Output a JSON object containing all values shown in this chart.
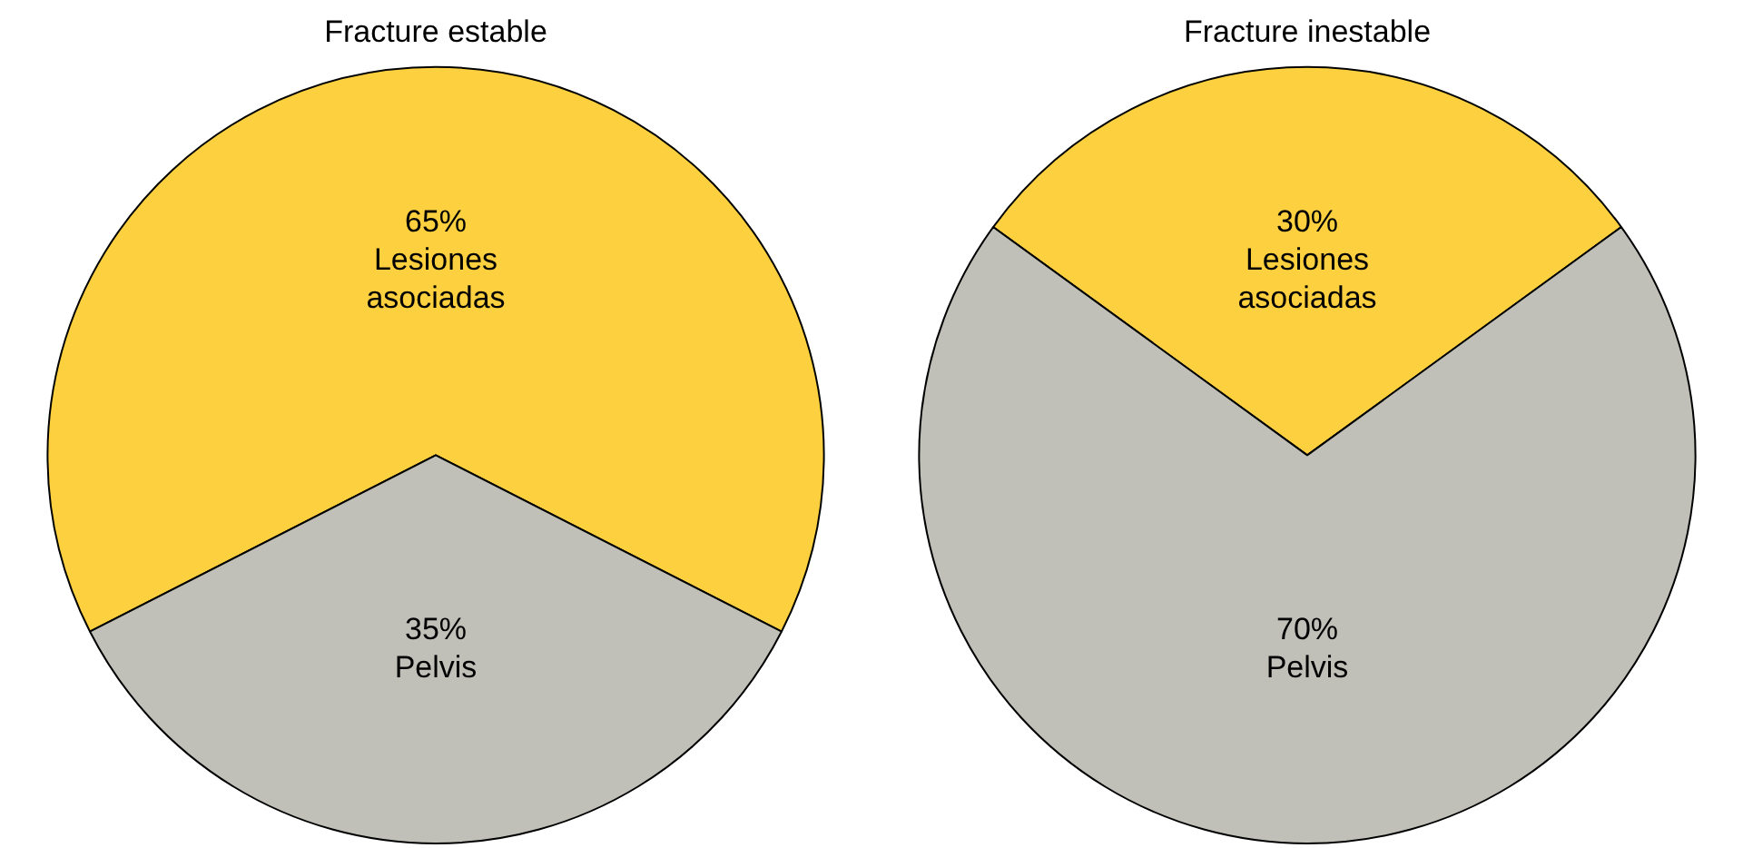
{
  "chart_data": [
    {
      "type": "pie",
      "title": "Fracture estable",
      "categories": [
        "Lesiones asociadas",
        "Pelvis"
      ],
      "values": [
        65,
        35
      ],
      "colors": [
        "#fdd03f",
        "#c0c0b9"
      ],
      "value_labels": [
        "65%",
        "35%"
      ]
    },
    {
      "type": "pie",
      "title": "Fracture inestable",
      "categories": [
        "Lesiones asociadas",
        "Pelvis"
      ],
      "values": [
        30,
        70
      ],
      "colors": [
        "#fdd03f",
        "#c0c0b9"
      ],
      "value_labels": [
        "30%",
        "70%"
      ]
    }
  ]
}
